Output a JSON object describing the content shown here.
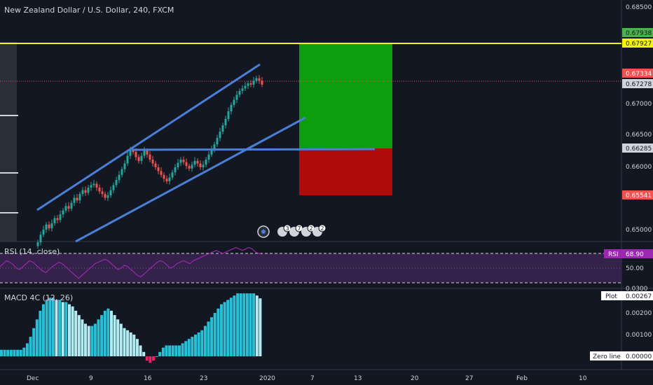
{
  "title": "New Zealand Dollar / U.S. Dollar, 240, FXCM",
  "colors": {
    "background": "#131722",
    "up_candle": "#26a69a",
    "down_candle": "#ef5350",
    "channel": "#4a7fd6",
    "target_line": "#f5f50a",
    "profit_zone": "#0c9e0c",
    "loss_zone": "#b00a0a",
    "rsi_line": "#9c27b0",
    "rsi_band": "#3b2552",
    "macd_up": "#29c0d6",
    "macd_down": "#b2ebf2",
    "macd_neg": "#e91e63"
  },
  "price_axis": {
    "ticks": [
      "0.68500",
      "0.67000",
      "0.66500",
      "0.66000",
      "0.65000"
    ],
    "labels": [
      {
        "text": "0.67938",
        "bg": "#4caf50",
        "fg": "#131722"
      },
      {
        "text": "0.67927",
        "bg": "#f5f50a",
        "fg": "#131722"
      },
      {
        "text": "0.67334",
        "bg": "#ef5350",
        "fg": "#ffffff"
      },
      {
        "text": "0.67278",
        "bg": "#d1d4dc",
        "fg": "#131722"
      },
      {
        "text": "0.66285",
        "bg": "#d1d4dc",
        "fg": "#131722"
      },
      {
        "text": "0.65541",
        "bg": "#ef5350",
        "fg": "#ffffff"
      }
    ]
  },
  "time_axis": [
    "Dec",
    "9",
    "16",
    "23",
    "2020",
    "7",
    "13",
    "20",
    "27",
    "Feb",
    "10"
  ],
  "events": [
    "3",
    "7",
    "2",
    "2"
  ],
  "rsi": {
    "label": "RSI (14, close)",
    "tag": "RSI",
    "value": "68.90",
    "ticks": [
      "50.00",
      "0.0300"
    ]
  },
  "macd": {
    "label": "MACD 4C (12, 26)",
    "plot_tag": "Plot",
    "plot_value": "0.00267",
    "ticks": [
      "0.00200",
      "0.00100"
    ],
    "zero_tag": "Zero line",
    "zero_value": "0.00000"
  },
  "chart_data": {
    "type": "candlestick",
    "symbol": "NZDUSD",
    "timeframe": "240",
    "x": [
      "Dec",
      "9",
      "16",
      "23",
      "2020",
      "7",
      "13",
      "20",
      "27",
      "Feb",
      "10"
    ],
    "ylim": [
      0.648,
      0.6875
    ],
    "close_series": [
      0.648,
      0.6492,
      0.65,
      0.6508,
      0.6502,
      0.651,
      0.6518,
      0.6515,
      0.6524,
      0.653,
      0.6537,
      0.6533,
      0.6542,
      0.655,
      0.6546,
      0.6556,
      0.6562,
      0.6558,
      0.6566,
      0.657,
      0.6572,
      0.6566,
      0.656,
      0.6556,
      0.655,
      0.6554,
      0.6562,
      0.657,
      0.6578,
      0.6586,
      0.6595,
      0.6604,
      0.6616,
      0.6626,
      0.6622,
      0.6614,
      0.6608,
      0.6616,
      0.6624,
      0.6618,
      0.661,
      0.6604,
      0.6598,
      0.6592,
      0.6586,
      0.658,
      0.6576,
      0.6582,
      0.659,
      0.6598,
      0.6605,
      0.661,
      0.6606,
      0.66,
      0.6596,
      0.6602,
      0.6608,
      0.6604,
      0.6598,
      0.6602,
      0.661,
      0.6618,
      0.6626,
      0.6634,
      0.6644,
      0.6654,
      0.6664,
      0.6674,
      0.6686,
      0.6696,
      0.6704,
      0.6712,
      0.6718,
      0.6722,
      0.6726,
      0.673,
      0.6728,
      0.6734,
      0.6738,
      0.6734,
      0.6728
    ],
    "levels": {
      "target_line": 0.67927,
      "take_profit": 0.67938,
      "entry": 0.66285,
      "stop_loss": 0.65541,
      "last_price": 0.67334,
      "prev_close": 0.67278
    },
    "channel_upper": [
      [
        "0.6535 start",
        0.6535
      ],
      [
        "0.6770 end",
        0.677
      ]
    ],
    "channel_lower": [
      [
        "0.6480 start",
        0.648
      ],
      [
        "0.6675 end",
        0.6675
      ]
    ],
    "horizontal_resistance": 0.663,
    "rsi_values": [
      52,
      56,
      60,
      58,
      55,
      50,
      48,
      52,
      56,
      60,
      58,
      54,
      50,
      46,
      44,
      48,
      52,
      55,
      58,
      56,
      52,
      48,
      44,
      40,
      36,
      40,
      44,
      48,
      52,
      56,
      58,
      60,
      62,
      60,
      56,
      52,
      48,
      50,
      54,
      52,
      48,
      44,
      40,
      38,
      42,
      46,
      50,
      54,
      58,
      60,
      58,
      54,
      50,
      52,
      56,
      58,
      60,
      58,
      56,
      60,
      62,
      64,
      66,
      68,
      70,
      72,
      74,
      72,
      70,
      72,
      74,
      76,
      78,
      76,
      74,
      76,
      78,
      76,
      72,
      70,
      68.9
    ],
    "macd_values": [
      0.0003,
      0.0003,
      0.0003,
      0.0003,
      0.0003,
      0.0003,
      0.0003,
      0.0004,
      0.0006,
      0.0009,
      0.0013,
      0.0017,
      0.0021,
      0.0024,
      0.0026,
      0.0027,
      0.0027,
      0.0026,
      0.0026,
      0.0025,
      0.0025,
      0.0024,
      0.0023,
      0.0021,
      0.0019,
      0.0017,
      0.0015,
      0.0014,
      0.0014,
      0.0015,
      0.0017,
      0.0019,
      0.0021,
      0.0022,
      0.0021,
      0.0019,
      0.0017,
      0.0015,
      0.0013,
      0.0012,
      0.0011,
      0.001,
      0.0008,
      0.0005,
      0.0002,
      -0.0002,
      -0.0003,
      -0.0002,
      0.0,
      0.0002,
      0.0004,
      0.0005,
      0.0005,
      0.0005,
      0.0005,
      0.0005,
      0.0006,
      0.0007,
      0.0008,
      0.0009,
      0.001,
      0.0011,
      0.0012,
      0.0014,
      0.0016,
      0.0018,
      0.002,
      0.0022,
      0.0024,
      0.0025,
      0.0026,
      0.0027,
      0.0028,
      0.0029,
      0.0029,
      0.0029,
      0.0029,
      0.0029,
      0.0029,
      0.0028,
      0.00267
    ]
  }
}
